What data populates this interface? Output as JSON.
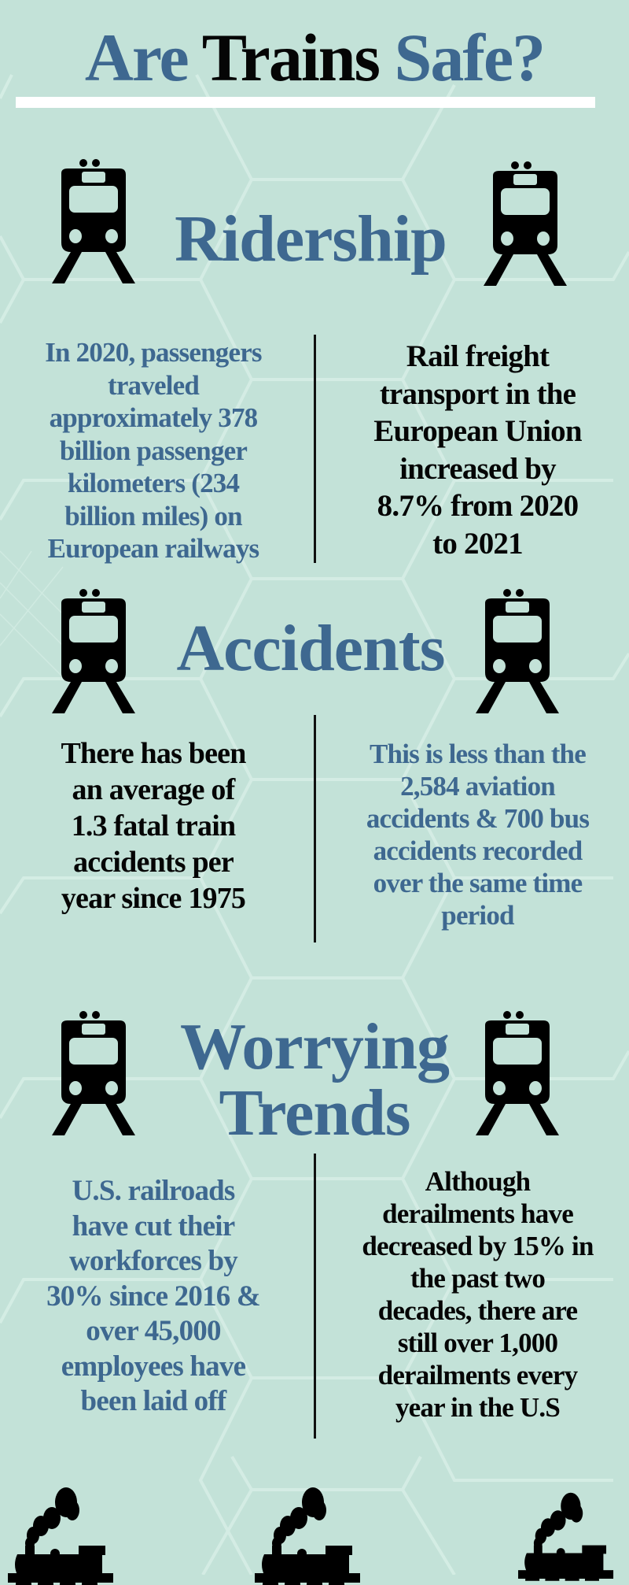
{
  "colors": {
    "background": "#c3e2d8",
    "accent_blue": "#3e6890",
    "text_black": "#050505",
    "rule": "#ffffff"
  },
  "title": {
    "part1": "Are",
    "part2": "Trains",
    "part3": "Safe?"
  },
  "sections": [
    {
      "heading": [
        "Ridership"
      ],
      "icon": "train-front-icon",
      "left": [
        "In 2020, passengers",
        "traveled",
        "approximately 378",
        "billion passenger",
        "kilometers (234",
        "billion miles) on",
        "European railways"
      ],
      "right": [
        "Rail freight",
        "transport in the",
        "European Union",
        "increased by",
        "8.7% from 2020",
        "to 2021"
      ]
    },
    {
      "heading": [
        "Accidents"
      ],
      "icon": "train-front-icon",
      "left": [
        "There has been",
        "an average of",
        "1.3 fatal train",
        "accidents per",
        "year  since 1975"
      ],
      "right": [
        "This is less than the",
        "2,584 aviation",
        "accidents & 700 bus",
        "accidents recorded",
        "over the same time",
        "period"
      ]
    },
    {
      "heading": [
        "Worrying",
        "Trends"
      ],
      "icon": "train-front-icon",
      "left": [
        "U.S.  railroads",
        "have cut their",
        "workforces by",
        "30% since 2016 &",
        "over 45,000",
        "employees have",
        "been laid off"
      ],
      "right": [
        "Although",
        "derailments have",
        "decreased by 15% in",
        "the past two",
        "decades, there are",
        "still over 1,000",
        "derailments every",
        "year  in the U.S"
      ]
    }
  ],
  "footer": {
    "icon": "steam-locomotive-icon"
  }
}
